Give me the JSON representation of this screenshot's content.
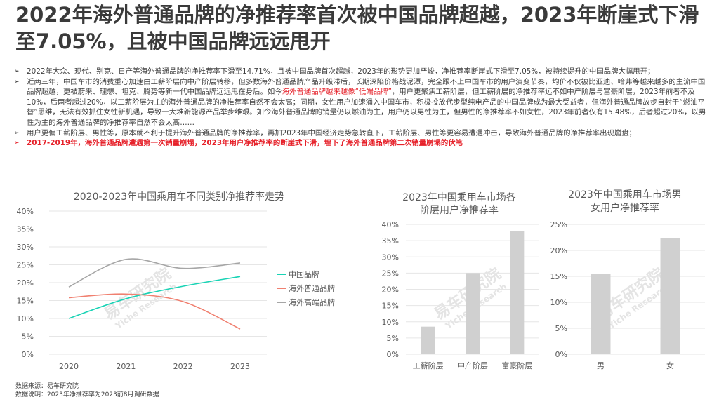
{
  "title": "2022年海外普通品牌的净推荐率首次被中国品牌超越，2023年断崖式下滑至7.05%，且被中国品牌远远甩开",
  "bullet_marker": "➢",
  "bullets": [
    {
      "text": "2022年大众、现代、别克、日产等海外普通品牌的净推荐率下滑至14.71%，且被中国品牌首次超越，2023年的形势更加严峻，净推荐率断崖式下滑至7.05%，被持续提升的中国品牌大幅甩开；"
    },
    {
      "pre": "近两三年，中国车市的消费重心加速由工薪阶层向中产阶层转移，但多数海外普通品牌产品升级滞后，长期深陷价格战泥潭，完全跟不上中国车市的用户演变节奏，均价不仅被比亚迪、哈弗等越来越多的主流中国品牌超越，更被蔚来、理想、坦克、腾势等新一代中国品牌远远甩在身后。如今",
      "highlight": "海外普通品牌越来越像“低端品牌”",
      "post": "，用户更聚焦工薪阶层，但工薪阶层的净推荐率远不如中产阶层与富豪阶层，2023年前者不及10%，后两者超过20%，以工薪阶层为主的海外普通品牌的净推荐率自然不会太高；同期，女性用户加速涌入中国车市，积极投放代步型纯电产品的中国品牌成为最大受益者，但海外普通品牌故步自封于“燃油平替”思维，无法有效抓住女性新机遇，导致一大堆新能源产品举步维艰。如今海外普通品牌的销量仍以燃油为主，用户仍以男性为主，但男性的净推荐率不如女性，2023年前者仅有15.48%，后者超过20%，以男性为主的海外普通品牌的净推荐率自然不会太高……"
    },
    {
      "text": "用户更偏工薪阶层、男性等，原本就不利于提升海外普通品牌的净推荐率，再加2023年中国经济走势急转直下，工薪阶层、男性等更容易遭遇冲击，导致海外普通品牌的净推荐率出现崩盘；"
    },
    {
      "text": "2017-2019年，海外普通品牌遭遇第一次销量崩塌，2023年用户净推荐率的断崖式下滑，埋下了海外普通品牌第二次销量崩塌的伏笔"
    }
  ],
  "watermark": {
    "cn": "易车研究院",
    "en": "Yiche Research"
  },
  "colors": {
    "china": "#19d3b5",
    "overseas_general": "#f08070",
    "overseas_premium": "#a6a6a6",
    "bar": "#d0d0d0",
    "grid": "#e6e6e6",
    "red": "#e6212a"
  },
  "chart_data": [
    {
      "type": "line",
      "title": "2020-2023年中国乘用车不同类别净推荐率走势",
      "x": [
        "2020",
        "2021",
        "2022",
        "2023"
      ],
      "ylim": [
        0,
        40
      ],
      "yticks": [
        "0%",
        "5%",
        "10%",
        "15%",
        "20%",
        "25%",
        "30%",
        "35%",
        "40%"
      ],
      "grid": true,
      "legend": "right",
      "series": [
        {
          "name": "中国品牌",
          "values": [
            10,
            15.5,
            19,
            21.7
          ]
        },
        {
          "name": "海外普通品牌",
          "values": [
            15.8,
            16.8,
            14.71,
            7.05
          ]
        },
        {
          "name": "海外高端品牌",
          "values": [
            18.8,
            26.5,
            24,
            25.5
          ]
        }
      ]
    },
    {
      "type": "bar",
      "title": "2023年中国乘用车市场各阶层用户净推荐率",
      "title_lines": [
        "2023年中国乘用车市场各",
        "阶层用户净推荐率"
      ],
      "categories": [
        "工薪阶层",
        "中产阶层",
        "富豪阶层"
      ],
      "values": [
        8.5,
        25,
        38
      ],
      "ylim": [
        0,
        40
      ],
      "yticks": [
        "0%",
        "5%",
        "10%",
        "15%",
        "20%",
        "25%",
        "30%",
        "35%",
        "40%"
      ]
    },
    {
      "type": "bar",
      "title": "2023年中国乘用车市场男女用户净推荐率",
      "title_lines": [
        "2023年中国乘用车市场男",
        "女用户净推荐率"
      ],
      "categories": [
        "男",
        "女"
      ],
      "values": [
        15.48,
        22.3
      ],
      "ylim": [
        0,
        25
      ],
      "yticks": [
        "0%",
        "5%",
        "10%",
        "15%",
        "20%",
        "25%"
      ]
    }
  ],
  "footer": {
    "source": "数据来源：易车研究院",
    "note": "数据说明：2023年净推荐率为2023前8月调研数据"
  }
}
